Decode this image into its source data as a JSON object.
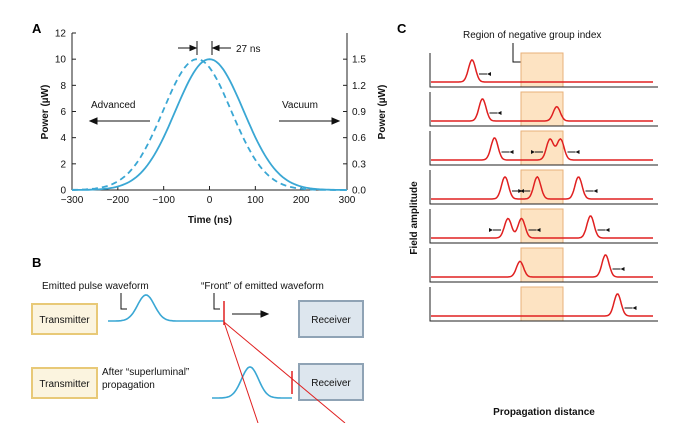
{
  "panels": {
    "a": {
      "letter": "A",
      "colors": {
        "curve": "#3aa7d4",
        "axis": "#222222"
      },
      "left_axis_title": "Power (µW)",
      "right_axis_title": "Power (µW)",
      "x_axis_title": "Time (ns)",
      "delay_label": "27 ns",
      "advanced_label": "Advanced",
      "vacuum_label": "Vacuum",
      "chart_data": {
        "type": "line",
        "x_ticks": [
          "−300",
          "−200",
          "−100",
          "0",
          "100",
          "200",
          "300"
        ],
        "y_left_ticks": [
          "0",
          "2",
          "4",
          "6",
          "8",
          "10",
          "12"
        ],
        "y_right_ticks": [
          "0.0",
          "0.3",
          "0.6",
          "0.9",
          "1.2",
          "1.5"
        ],
        "xlim": [
          -300,
          300
        ],
        "ylim_left": [
          0,
          12
        ],
        "ylim_right": [
          0,
          1.8
        ],
        "series": [
          {
            "style": "solid",
            "peak_time": 0,
            "peak_power": 10,
            "width": 105
          },
          {
            "style": "dashed",
            "peak_time": -27,
            "peak_power": 10,
            "width": 105
          }
        ]
      }
    },
    "b": {
      "letter": "B",
      "colors": {
        "box_border": "#e8c977",
        "box_fill": "#fbf4df",
        "receiver_fill": "#dde6ee",
        "receiver_border": "#8fa3b5",
        "pulse": "#3aa7d4",
        "front": "#e02020"
      },
      "emitted_label": "Emitted pulse waveform",
      "front_label": "“Front” of emitted waveform",
      "transmitter_1": "Transmitter",
      "receiver_1": "Receiver",
      "transmitter_2": "Transmitter",
      "after_line1": "After “superluminal”",
      "after_line2": "propagation",
      "receiver_2": "Receiver"
    },
    "c": {
      "letter": "C",
      "region_label": "Region of negative group index",
      "y_axis_title": "Field amplitude",
      "x_axis_title": "Propagation distance",
      "colors": {
        "trace": "#e02020",
        "region": "#fde3c2",
        "region_border": "#e8b07a",
        "panel_border": "#222222"
      },
      "traces": [
        {
          "pulses": [
            {
              "pos": 0.18,
              "amp": 0.85,
              "dir": 1
            }
          ]
        },
        {
          "pulses": [
            {
              "pos": 0.25,
              "amp": 0.85,
              "dir": 1
            },
            {
              "pos": 0.745,
              "amp": 0.55,
              "dir": 0
            }
          ]
        },
        {
          "pulses": [
            {
              "pos": 0.33,
              "amp": 0.85,
              "dir": 1
            },
            {
              "pos": 0.7,
              "amp": 0.8,
              "dir": -1
            },
            {
              "pos": 0.77,
              "amp": 0.8,
              "dir": 1
            }
          ]
        },
        {
          "pulses": [
            {
              "pos": 0.4,
              "amp": 0.85,
              "dir": 1
            },
            {
              "pos": 0.615,
              "amp": 0.85,
              "dir": -1
            },
            {
              "pos": 0.89,
              "amp": 0.85,
              "dir": 1
            }
          ]
        },
        {
          "pulses": [
            {
              "pos": 0.42,
              "amp": 0.75,
              "dir": -1
            },
            {
              "pos": 0.51,
              "amp": 0.75,
              "dir": 1
            },
            {
              "pos": 0.97,
              "amp": 0.85,
              "dir": 1
            }
          ]
        },
        {
          "pulses": [
            {
              "pos": 0.5,
              "amp": 0.6,
              "dir": 0
            },
            {
              "pos": 1.07,
              "amp": 0.85,
              "dir": 1
            }
          ]
        },
        {
          "pulses": [
            {
              "pos": 1.15,
              "amp": 0.85,
              "dir": 1
            }
          ]
        }
      ]
    }
  }
}
